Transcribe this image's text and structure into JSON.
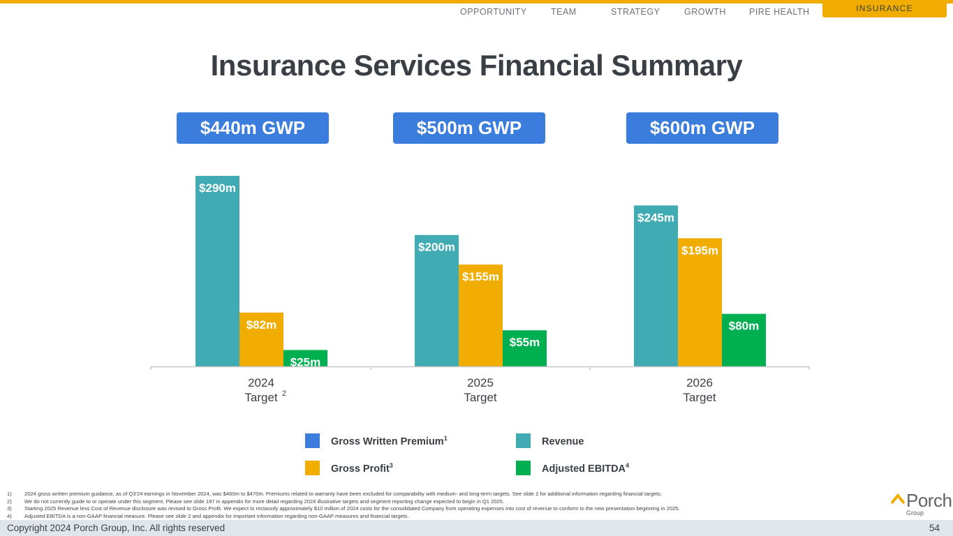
{
  "nav": {
    "items": [
      "OPPORTUNITY",
      "TEAM",
      "STRATEGY",
      "GROWTH",
      "PIRE HEALTH"
    ],
    "active": "INSURANCE"
  },
  "title": "Insurance Services Financial Summary",
  "gwp_badges": [
    "$440m GWP",
    "$500m GWP",
    "$600m GWP"
  ],
  "colors": {
    "accent": "#f0ad00",
    "gwp": "#3b7ddd",
    "revenue": "#41abb4",
    "gross_profit": "#f0ad00",
    "adjusted_ebitda": "#00b050"
  },
  "chart_data": {
    "type": "bar",
    "title": "Insurance Services Financial Summary",
    "categories": [
      {
        "line1": "2024",
        "line2": "Target",
        "superscript": "2"
      },
      {
        "line1": "2025",
        "line2": "Target",
        "superscript": ""
      },
      {
        "line1": "2026",
        "line2": "Target",
        "superscript": ""
      }
    ],
    "series": [
      {
        "name": "Revenue",
        "color": "#41abb4",
        "values": [
          290,
          200,
          245
        ],
        "labels": [
          "$290m",
          "$200m",
          "$245m"
        ]
      },
      {
        "name": "Gross Profit",
        "color": "#f0ad00",
        "values": [
          82,
          155,
          195
        ],
        "labels": [
          "$82m",
          "$155m",
          "$195m"
        ]
      },
      {
        "name": "Adjusted EBITDA",
        "color": "#00b050",
        "values": [
          25,
          55,
          80
        ],
        "labels": [
          "$25m",
          "$55m",
          "$80m"
        ]
      }
    ],
    "gwp": [
      440,
      500,
      600
    ],
    "ylim": [
      0,
      300
    ],
    "xlabel": "",
    "ylabel": "",
    "grid": false
  },
  "legend": [
    {
      "label": "Gross Written Premium",
      "sup": "1",
      "color": "#3b7ddd"
    },
    {
      "label": "Revenue",
      "sup": "",
      "color": "#41abb4"
    },
    {
      "label": "Gross Profit",
      "sup": "3",
      "color": "#f0ad00"
    },
    {
      "label": "Adjusted EBITDA",
      "sup": "4",
      "color": "#00b050"
    }
  ],
  "footnotes": [
    {
      "num": "1)",
      "text": "2024 gross written premium guidance, as of Q3'24 earnings in November 2024, was $460m to $470m. Premiums related to warranty have been excluded for comparability with medium- and long-term targets. See slide 2 for additional information regarding financial targets."
    },
    {
      "num": "2)",
      "text": "We do not currently guide to or operate under this segment. Please see slide 197 in appendix for more detail regarding 2024 illustrative targets and segment reporting change expected to begin in Q1 2025."
    },
    {
      "num": "3)",
      "text": "Starting 2025 Revenue less Cost of Revenue disclosure was revised to Gross Profit. We expect to reclassify approximately $10 million of 2024 costs for the consolidated Company from operating expenses into cost of revenue to conform to the new presentation beginning in 2025."
    },
    {
      "num": "4)",
      "text": "Adjusted EBITDA is a non-GAAP financial measure. Please see slide 2 and appendix for important information regarding non-GAAP measures and financial targets."
    }
  ],
  "logo": {
    "word": "Porch",
    "sub": "Group"
  },
  "footer": {
    "copyright": "Copyright 2024 Porch Group, Inc. All rights reserved",
    "page": "54"
  }
}
